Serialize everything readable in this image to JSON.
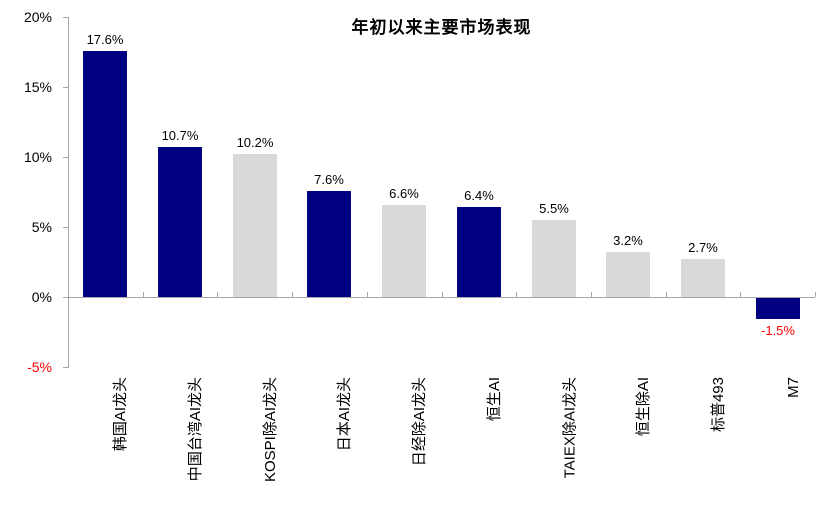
{
  "chart_data": {
    "type": "bar",
    "title": "年初以来主要市场表现",
    "categories": [
      "韩国AI龙头",
      "中国台湾AI龙头",
      "KOSPI除AI龙头",
      "日本AI龙头",
      "日经除AI龙头",
      "恒生AI",
      "TAIEX除AI龙头",
      "恒生除AI",
      "标普493",
      "M7"
    ],
    "values": [
      17.6,
      10.7,
      10.2,
      7.6,
      6.6,
      6.4,
      5.5,
      3.2,
      2.7,
      -1.5
    ],
    "value_labels": [
      "17.6%",
      "10.7%",
      "10.2%",
      "7.6%",
      "6.6%",
      "6.4%",
      "5.5%",
      "3.2%",
      "2.7%",
      "-1.5%"
    ],
    "bar_palette_keys": [
      "navy",
      "navy",
      "gray",
      "navy",
      "gray",
      "navy",
      "gray",
      "gray",
      "gray",
      "navy"
    ],
    "xlabel": "",
    "ylabel": "",
    "ylim": [
      -5,
      20
    ],
    "yticks": [
      {
        "label": "20%",
        "value": 20
      },
      {
        "label": "15%",
        "value": 15
      },
      {
        "label": "10%",
        "value": 10
      },
      {
        "label": "5%",
        "value": 5
      },
      {
        "label": "0%",
        "value": 0
      },
      {
        "label": "-5%",
        "value": -5
      }
    ],
    "grid": false,
    "legend": "none",
    "colors": {
      "navy": "#000080",
      "gray": "#d9d9d9",
      "text": "#000000",
      "negative_text": "#ff0000",
      "axis": "#a6a6a6"
    }
  }
}
